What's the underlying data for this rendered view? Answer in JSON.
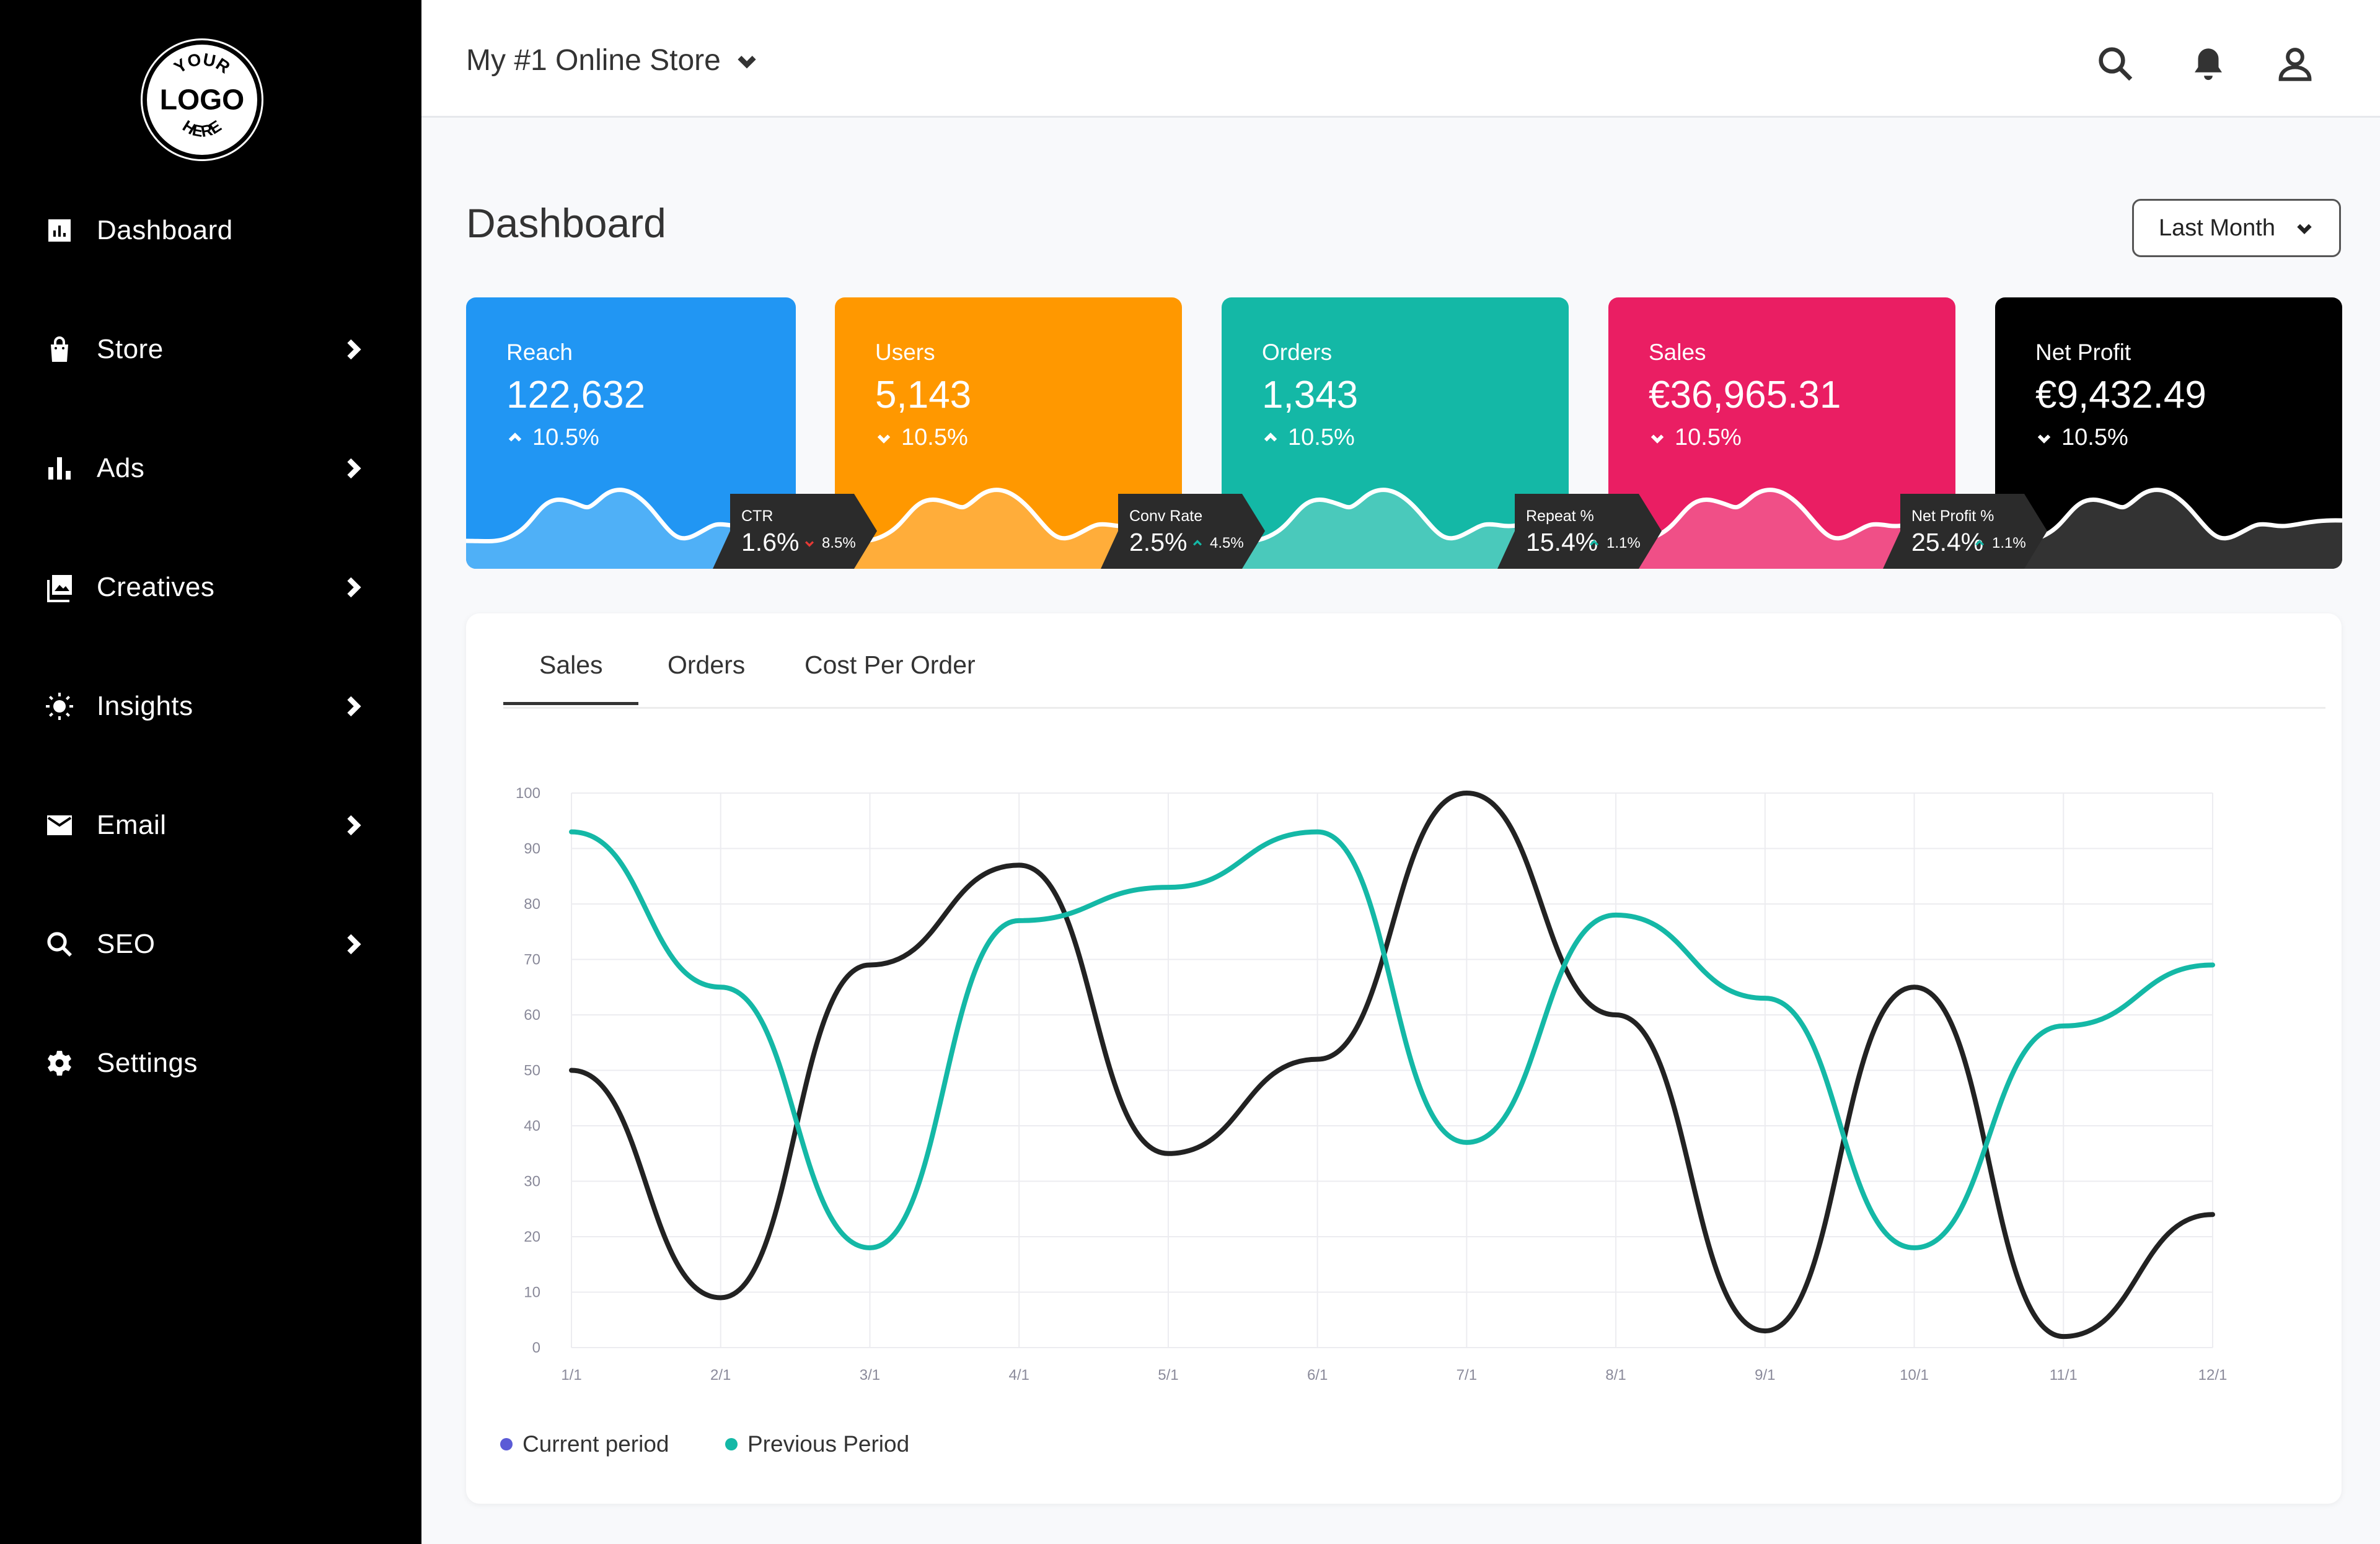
{
  "logo": {
    "top_text": "YOUR",
    "mid_text": "LOGO",
    "bottom_text": "HERE"
  },
  "sidebar": {
    "items": [
      {
        "label": "Dashboard",
        "icon": "dashboard-icon",
        "has_arrow": false
      },
      {
        "label": "Store",
        "icon": "shopping-bag-icon",
        "has_arrow": true
      },
      {
        "label": "Ads",
        "icon": "bar-chart-icon",
        "has_arrow": true
      },
      {
        "label": "Creatives",
        "icon": "images-icon",
        "has_arrow": true
      },
      {
        "label": "Insights",
        "icon": "lightbulb-icon",
        "has_arrow": true
      },
      {
        "label": "Email",
        "icon": "mail-icon",
        "has_arrow": true
      },
      {
        "label": "SEO",
        "icon": "search-icon",
        "has_arrow": true
      },
      {
        "label": "Settings",
        "icon": "gear-icon",
        "has_arrow": false
      }
    ]
  },
  "header": {
    "store_name": "My #1 Online Store"
  },
  "page": {
    "title": "Dashboard",
    "range": "Last Month"
  },
  "kpis": [
    {
      "label": "Reach",
      "value": "122,632",
      "change": "10.5%",
      "direction": "up",
      "color": "#2196f3",
      "wave": "#4fb0f7"
    },
    {
      "label": "Users",
      "value": "5,143",
      "change": "10.5%",
      "direction": "down",
      "color": "#ff9800",
      "wave": "#ffad3a"
    },
    {
      "label": "Orders",
      "value": "1,343",
      "change": "10.5%",
      "direction": "up",
      "color": "#14b8a6",
      "wave": "#4ac9bb"
    },
    {
      "label": "Sales",
      "value": "€36,965.31",
      "change": "10.5%",
      "direction": "down",
      "color": "#ea1e63",
      "wave": "#f04f87"
    },
    {
      "label": "Net Profit",
      "value": "€9,432.49",
      "change": "10.5%",
      "direction": "down",
      "color": "#000000",
      "wave": "#333333"
    }
  ],
  "tags": [
    {
      "label": "CTR",
      "value": "1.6%",
      "delta": "8.5%",
      "direction": "down"
    },
    {
      "label": "Conv Rate",
      "value": "2.5%",
      "delta": "4.5%",
      "direction": "up"
    },
    {
      "label": "Repeat %",
      "value": "15.4%",
      "delta": "1.1%",
      "direction": "up"
    },
    {
      "label": "Net Profit %",
      "value": "25.4%",
      "delta": "1.1%",
      "direction": "up"
    }
  ],
  "tabs": {
    "sales": "Sales",
    "orders": "Orders",
    "cost_per_order": "Cost Per Order"
  },
  "chart_data": {
    "type": "line",
    "x": [
      "1/1",
      "2/1",
      "3/1",
      "4/1",
      "5/1",
      "6/1",
      "7/1",
      "8/1",
      "9/1",
      "10/1",
      "11/1",
      "12/1"
    ],
    "y_ticks": [
      0,
      10,
      20,
      30,
      40,
      50,
      60,
      70,
      80,
      90,
      100
    ],
    "ylim": [
      0,
      100
    ],
    "grid": true,
    "series": [
      {
        "name": "Current period",
        "color": "#222222",
        "legend_color": "#5b5bd6",
        "values": [
          50,
          9,
          69,
          87,
          35,
          52,
          100,
          60,
          3,
          65,
          2,
          24
        ]
      },
      {
        "name": "Previous Period",
        "color": "#14b8a6",
        "legend_color": "#14b8a6",
        "values": [
          93,
          65,
          18,
          77,
          83,
          93,
          37,
          78,
          63,
          18,
          58,
          69
        ]
      }
    ],
    "legend_position": "bottom-left"
  }
}
